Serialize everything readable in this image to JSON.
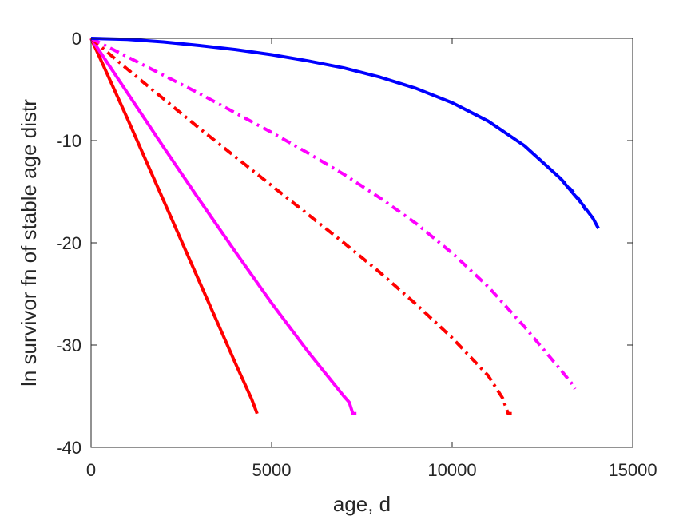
{
  "chart_data": {
    "type": "line",
    "title": "",
    "xlabel": "age, d",
    "ylabel": "ln survivor fn of stable age distr",
    "xlim": [
      0,
      15000
    ],
    "ylim": [
      -40,
      0
    ],
    "xticks": [
      0,
      5000,
      10000,
      15000
    ],
    "yticks": [
      0,
      -10,
      -20,
      -30,
      -40
    ],
    "xtick_labels": [
      "0",
      "5000",
      "10000",
      "15000"
    ],
    "ytick_labels": [
      "0",
      "-10",
      "-20",
      "-30",
      "-40"
    ],
    "grid": false,
    "legend": null,
    "series": [
      {
        "color": "#ff0000",
        "style": "solid",
        "points": [
          [
            0,
            0
          ],
          [
            1000,
            -7.8
          ],
          [
            2000,
            -15.8
          ],
          [
            3000,
            -23.8
          ],
          [
            4000,
            -31.8
          ],
          [
            4450,
            -35.3
          ],
          [
            4600,
            -36.7
          ]
        ]
      },
      {
        "color": "#ff00ff",
        "style": "solid",
        "points": [
          [
            0,
            0
          ],
          [
            1000,
            -5.3
          ],
          [
            2000,
            -10.6
          ],
          [
            3000,
            -15.8
          ],
          [
            4000,
            -20.9
          ],
          [
            5000,
            -25.9
          ],
          [
            6000,
            -30.6
          ],
          [
            7000,
            -35.0
          ],
          [
            7150,
            -35.6
          ],
          [
            7250,
            -36.7
          ],
          [
            7350,
            -36.7
          ]
        ]
      },
      {
        "color": "#ff0000",
        "style": "dashdot",
        "points": [
          [
            0,
            0
          ],
          [
            1000,
            -3.0
          ],
          [
            2000,
            -5.9
          ],
          [
            3000,
            -8.8
          ],
          [
            4000,
            -11.6
          ],
          [
            5000,
            -14.4
          ],
          [
            6000,
            -17.2
          ],
          [
            7000,
            -20.0
          ],
          [
            8000,
            -22.9
          ],
          [
            9000,
            -26.0
          ],
          [
            10000,
            -29.3
          ],
          [
            11000,
            -33.0
          ],
          [
            11400,
            -35.2
          ],
          [
            11550,
            -36.7
          ],
          [
            11650,
            -36.7
          ]
        ]
      },
      {
        "color": "#ff00ff",
        "style": "dashdot",
        "points": [
          [
            0,
            0
          ],
          [
            1000,
            -1.8
          ],
          [
            2000,
            -3.6
          ],
          [
            3000,
            -5.4
          ],
          [
            4000,
            -7.3
          ],
          [
            5000,
            -9.2
          ],
          [
            6000,
            -11.2
          ],
          [
            7000,
            -13.3
          ],
          [
            8000,
            -15.6
          ],
          [
            9000,
            -18.1
          ],
          [
            10000,
            -21.0
          ],
          [
            11000,
            -24.3
          ],
          [
            12000,
            -28.2
          ],
          [
            13000,
            -32.4
          ],
          [
            13300,
            -33.7
          ],
          [
            13400,
            -34.3
          ]
        ]
      },
      {
        "color": "#0000ff",
        "style": "solid",
        "points": [
          [
            0,
            0
          ],
          [
            1000,
            -0.1
          ],
          [
            2000,
            -0.35
          ],
          [
            3000,
            -0.7
          ],
          [
            4000,
            -1.1
          ],
          [
            5000,
            -1.6
          ],
          [
            6000,
            -2.2
          ],
          [
            7000,
            -2.9
          ],
          [
            8000,
            -3.8
          ],
          [
            9000,
            -4.9
          ],
          [
            10000,
            -6.3
          ],
          [
            11000,
            -8.1
          ],
          [
            12000,
            -10.5
          ],
          [
            13000,
            -13.7
          ],
          [
            13600,
            -16.2
          ],
          [
            13900,
            -17.6
          ],
          [
            14050,
            -18.6
          ]
        ]
      },
      {
        "color": "#0000ff",
        "style": "dash",
        "points": [
          [
            13000,
            -13.7
          ],
          [
            13400,
            -15.2
          ],
          [
            13600,
            -16.2
          ],
          [
            13700,
            -16.8
          ]
        ]
      }
    ]
  }
}
